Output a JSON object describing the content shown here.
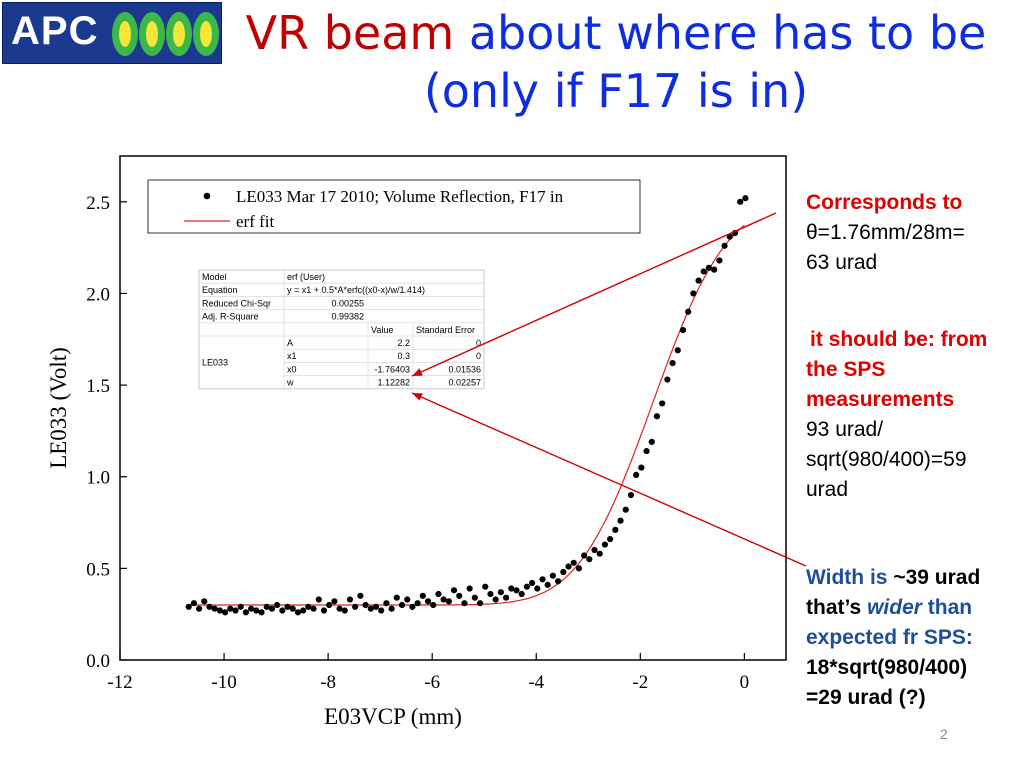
{
  "logo": {
    "text": "APC"
  },
  "title": {
    "part1": "VR beam",
    "part2": "about where has to be (only if F17 is in)"
  },
  "chart_data": {
    "type": "scatter",
    "xlabel": "E03VCP (mm)",
    "ylabel": "LE033 (Volt)",
    "xlim": [
      -12,
      0.8
    ],
    "ylim": [
      0,
      2.75
    ],
    "x_ticks": [
      -12,
      -10,
      -8,
      -6,
      -4,
      -2,
      0
    ],
    "y_ticks": [
      0.0,
      0.5,
      1.0,
      1.5,
      2.0,
      2.5
    ],
    "legend": [
      {
        "label": "LE033 Mar 17 2010; Volume Reflection, F17 in",
        "marker": "dot"
      },
      {
        "label": "erf fit",
        "marker": "line"
      }
    ],
    "series": [
      {
        "name": "LE033 Mar 17 2010; Volume Reflection, F17 in",
        "color": "#000000",
        "x": [
          -10.68,
          -10.58,
          -10.48,
          -10.38,
          -10.28,
          -10.18,
          -10.08,
          -9.98,
          -9.88,
          -9.78,
          -9.68,
          -9.58,
          -9.48,
          -9.38,
          -9.28,
          -9.18,
          -9.08,
          -8.98,
          -8.88,
          -8.78,
          -8.68,
          -8.58,
          -8.48,
          -8.38,
          -8.28,
          -8.18,
          -8.08,
          -7.98,
          -7.88,
          -7.78,
          -7.68,
          -7.58,
          -7.48,
          -7.38,
          -7.28,
          -7.18,
          -7.08,
          -6.98,
          -6.88,
          -6.78,
          -6.68,
          -6.58,
          -6.48,
          -6.38,
          -6.28,
          -6.18,
          -6.08,
          -5.98,
          -5.88,
          -5.78,
          -5.68,
          -5.58,
          -5.48,
          -5.38,
          -5.28,
          -5.18,
          -5.08,
          -4.98,
          -4.88,
          -4.78,
          -4.68,
          -4.58,
          -4.48,
          -4.38,
          -4.28,
          -4.18,
          -4.08,
          -3.98,
          -3.88,
          -3.78,
          -3.68,
          -3.58,
          -3.48,
          -3.38,
          -3.28,
          -3.18,
          -3.08,
          -2.98,
          -2.88,
          -2.78,
          -2.68,
          -2.58,
          -2.48,
          -2.38,
          -2.28,
          -2.18,
          -2.08,
          -1.98,
          -1.88,
          -1.78,
          -1.68,
          -1.58,
          -1.48,
          -1.38,
          -1.28,
          -1.18,
          -1.08,
          -0.98,
          -0.88,
          -0.78,
          -0.68,
          -0.58,
          -0.48,
          -0.38,
          -0.28,
          -0.18,
          -0.08,
          0.02
        ],
        "y": [
          0.29,
          0.31,
          0.28,
          0.32,
          0.29,
          0.28,
          0.27,
          0.26,
          0.28,
          0.27,
          0.29,
          0.26,
          0.28,
          0.27,
          0.26,
          0.29,
          0.28,
          0.3,
          0.27,
          0.29,
          0.28,
          0.26,
          0.27,
          0.29,
          0.28,
          0.33,
          0.27,
          0.3,
          0.32,
          0.28,
          0.27,
          0.33,
          0.29,
          0.35,
          0.3,
          0.28,
          0.29,
          0.27,
          0.31,
          0.28,
          0.34,
          0.3,
          0.33,
          0.29,
          0.31,
          0.35,
          0.32,
          0.3,
          0.36,
          0.33,
          0.32,
          0.38,
          0.35,
          0.31,
          0.39,
          0.34,
          0.31,
          0.4,
          0.36,
          0.33,
          0.37,
          0.34,
          0.39,
          0.38,
          0.36,
          0.4,
          0.42,
          0.39,
          0.44,
          0.41,
          0.46,
          0.43,
          0.48,
          0.51,
          0.53,
          0.5,
          0.57,
          0.55,
          0.6,
          0.58,
          0.63,
          0.66,
          0.71,
          0.76,
          0.82,
          0.9,
          1.01,
          1.05,
          1.14,
          1.19,
          1.33,
          1.4,
          1.53,
          1.62,
          1.69,
          1.8,
          1.9,
          2.0,
          2.07,
          2.12,
          2.14,
          2.13,
          2.18,
          2.26,
          2.31,
          2.33,
          2.5,
          2.52
        ],
        "marker": "dot"
      }
    ],
    "fit": {
      "name": "erf fit",
      "color": "#e02020",
      "A": 2.2,
      "x1": 0.3,
      "x0": -1.76403,
      "w": 1.12282
    },
    "stats_table": {
      "rows": [
        [
          "Model",
          "erf (User)",
          "",
          ""
        ],
        [
          "Equation",
          "y = x1 + 0.5*A*erfc((x0-x)/w/1.414)",
          "",
          ""
        ],
        [
          "Reduced Chi-Sqr",
          "0.00255",
          "",
          ""
        ],
        [
          "Adj. R-Square",
          "0.99382",
          "",
          ""
        ],
        [
          "",
          "",
          "Value",
          "Standard Error"
        ],
        [
          "LE033",
          "A",
          "2.2",
          "0"
        ],
        [
          "",
          "x1",
          "0.3",
          "0"
        ],
        [
          "",
          "x0",
          "-1.76403",
          "0.01536"
        ],
        [
          "",
          "w",
          "1.12282",
          "0.02257"
        ]
      ]
    }
  },
  "side": {
    "block1": {
      "line1": "Corresponds to",
      "line2": "θ=1.76mm/28m=",
      "line3": "63 urad"
    },
    "block2": {
      "line1": "it should be: from",
      "line2": "the SPS",
      "line3": "measurements",
      "line4": "93 urad/",
      "line5": "sqrt(980/400)=59",
      "line6": "urad"
    },
    "block3": {
      "line1a": "Width is",
      "line1b": "~39 urad",
      "line2a": "that’s",
      "line2b": "wider",
      "line2c": "than",
      "line3": "expected fr SPS:",
      "line4": "18*sqrt(980/400)",
      "line5": "=29 urad  (?)"
    }
  },
  "page": {
    "number": "2"
  }
}
